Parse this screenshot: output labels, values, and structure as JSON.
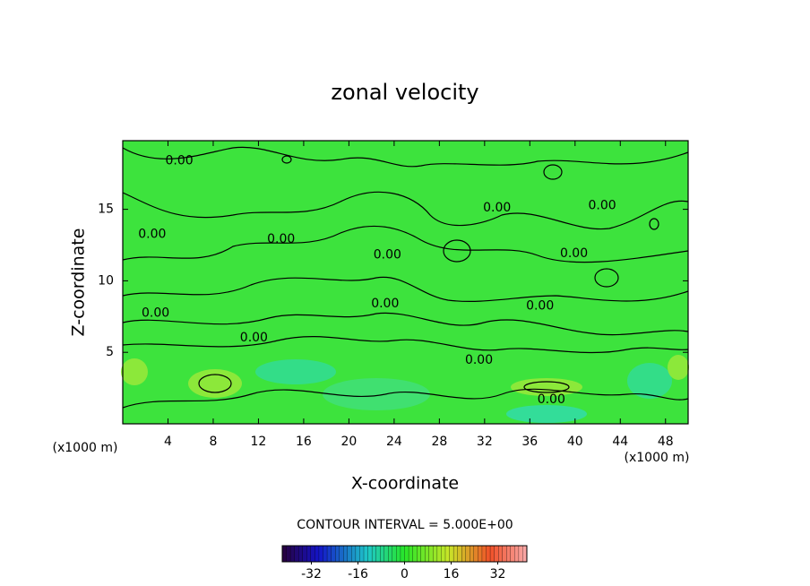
{
  "chart_data": {
    "type": "contour",
    "title": "zonal velocity",
    "x_label": "X-coordinate",
    "y_label": "Z-coordinate",
    "x_unit": "(x1000 m)",
    "xlim": [
      0,
      50
    ],
    "xticks": [
      4,
      8,
      12,
      16,
      20,
      24,
      28,
      32,
      36,
      40,
      44,
      48
    ],
    "ylim": [
      0,
      19.8
    ],
    "yticks": [
      5,
      10,
      15
    ],
    "field_color": "#3de33d",
    "contour_labels": [
      {
        "x": 5.0,
        "y": 18.4,
        "label": "0.00"
      },
      {
        "x": 2.6,
        "y": 13.25,
        "label": "0.00"
      },
      {
        "x": 14.0,
        "y": 12.9,
        "label": "0.00"
      },
      {
        "x": 33.1,
        "y": 15.1,
        "label": "0.00"
      },
      {
        "x": 42.4,
        "y": 15.25,
        "label": "0.00"
      },
      {
        "x": 2.9,
        "y": 7.75,
        "label": "0.00"
      },
      {
        "x": 11.6,
        "y": 6.0,
        "label": "0.00"
      },
      {
        "x": 23.4,
        "y": 11.8,
        "label": "0.00"
      },
      {
        "x": 23.2,
        "y": 8.4,
        "label": "0.00"
      },
      {
        "x": 39.9,
        "y": 11.9,
        "label": "0.00"
      },
      {
        "x": 36.9,
        "y": 8.25,
        "label": "0.00"
      },
      {
        "x": 31.5,
        "y": 4.45,
        "label": "0.00"
      },
      {
        "x": 37.9,
        "y": 1.7,
        "label": "0.00"
      }
    ],
    "contour_interval": "CONTOUR INTERVAL = 5.000E+00",
    "colorbar": {
      "lim": [
        -42,
        42
      ],
      "ticks": [
        -32,
        -16,
        0,
        16,
        32
      ]
    }
  }
}
